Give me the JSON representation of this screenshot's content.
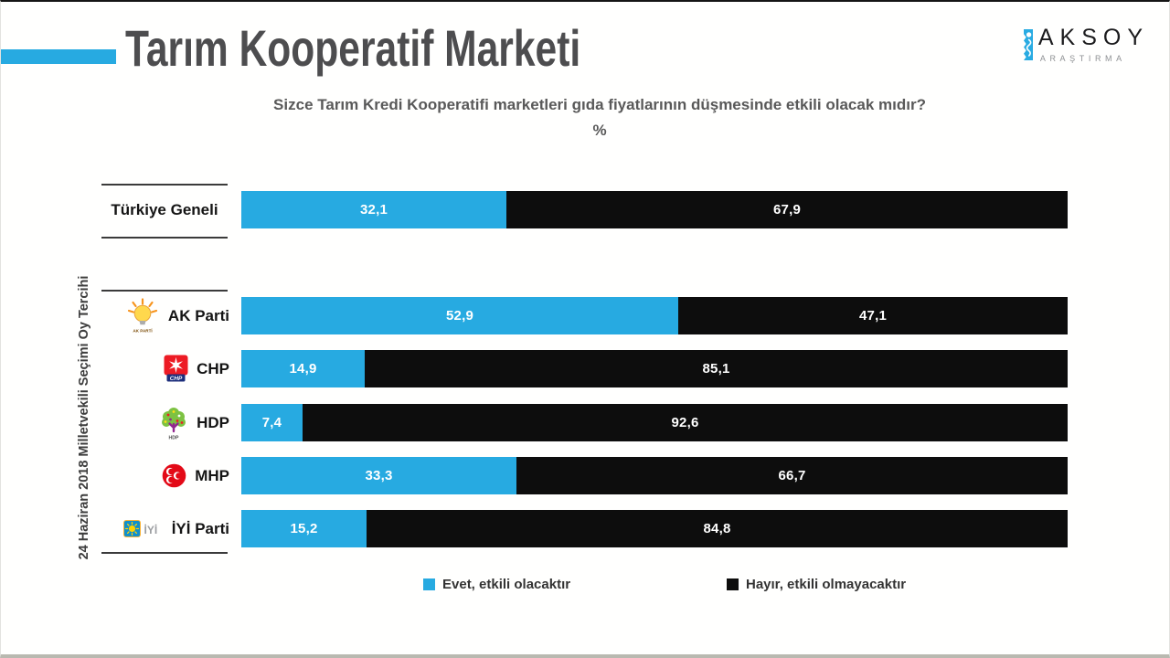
{
  "header": {
    "title": "Tarım Kooperatif Marketi",
    "logo": {
      "name": "AKSOY",
      "sub": "ARAŞTIRMA",
      "icon": "aksoy-totem-icon",
      "accent_color": "#27AAE1"
    }
  },
  "chart_data": {
    "type": "bar",
    "orientation": "horizontal",
    "stacked": true,
    "title": "Sizce Tarım Kredi Kooperatifi marketleri gıda fiyatlarının düşmesinde etkili olacak mıdır?",
    "unit_label": "%",
    "group_axis_label": "24 Haziran 2018 Milletvekili Seçimi Oy Tercihi",
    "categories": [
      "Türkiye Geneli",
      "AK Parti",
      "CHP",
      "HDP",
      "MHP",
      "İYİ Parti"
    ],
    "category_icons": [
      null,
      "akparti-lightbulb-icon",
      "chp-sixarrows-icon",
      "hdp-tree-icon",
      "mhp-crescents-icon",
      "iyi-sun-icon"
    ],
    "series": [
      {
        "name": "Evet, etkili olacaktır",
        "color": "#27AAE1",
        "values": [
          32.1,
          52.9,
          14.9,
          7.4,
          33.3,
          15.2
        ]
      },
      {
        "name": "Hayır, etkili olmayacaktır",
        "color": "#0D0D0D",
        "values": [
          67.9,
          47.1,
          85.1,
          92.6,
          66.7,
          84.8
        ]
      }
    ],
    "decimal_separator": ",",
    "x_range": [
      0,
      100
    ],
    "grid": false,
    "legend_position": "bottom"
  }
}
